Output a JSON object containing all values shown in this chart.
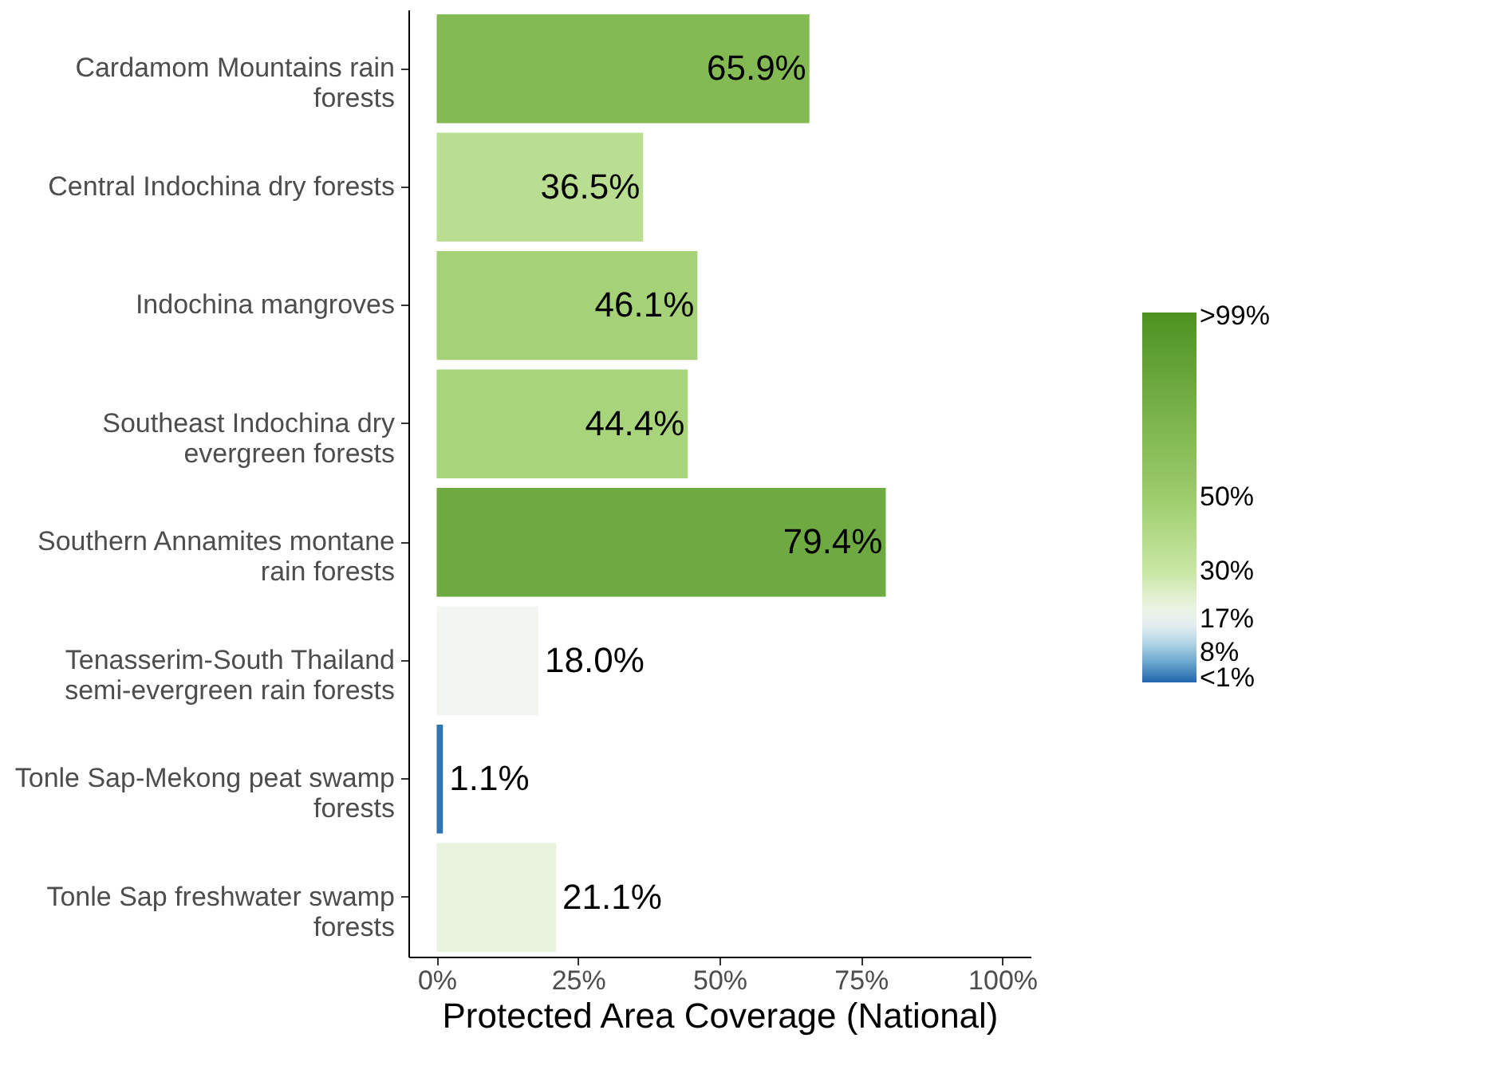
{
  "chart_data": {
    "type": "bar",
    "orientation": "horizontal",
    "xlabel": "Protected Area Coverage (National)",
    "categories": [
      "Cardamom Mountains rain forests",
      "Central Indochina dry forests",
      "Indochina mangroves",
      "Southeast Indochina dry evergreen forests",
      "Southern Annamites montane rain forests",
      "Tenasserim-South Thailand semi-evergreen rain forests",
      "Tonle Sap-Mekong peat swamp forests",
      "Tonle Sap freshwater swamp forests"
    ],
    "values": [
      65.9,
      36.5,
      46.1,
      44.4,
      79.4,
      18.0,
      1.1,
      21.1
    ],
    "value_labels": [
      "65.9%",
      "36.5%",
      "46.1%",
      "44.4%",
      "79.4%",
      "18.0%",
      "1.1%",
      "21.1%"
    ],
    "xlim": [
      -5,
      105
    ],
    "xticks": [
      {
        "value": 0,
        "label": "0%"
      },
      {
        "value": 25,
        "label": "25%"
      },
      {
        "value": 50,
        "label": "50%"
      },
      {
        "value": 75,
        "label": "75%"
      },
      {
        "value": 100,
        "label": "100%"
      }
    ],
    "clim": [
      0,
      100
    ],
    "cticks": [
      {
        "value": 1,
        "label": "<1%"
      },
      {
        "value": 8,
        "label": "8%"
      },
      {
        "value": 17,
        "label": "17%"
      },
      {
        "value": 30,
        "label": "30%"
      },
      {
        "value": 50,
        "label": "50%"
      },
      {
        "value": 99,
        "label": ">99%"
      }
    ],
    "grid": false
  }
}
